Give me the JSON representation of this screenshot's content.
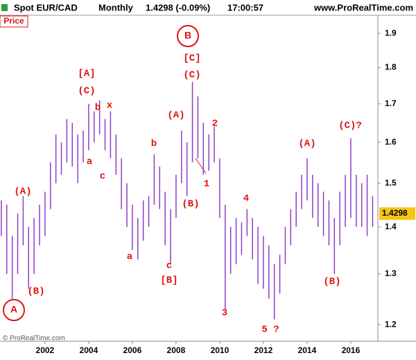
{
  "chart_data": {
    "type": "ohlc",
    "title": "Spot EUR/CAD",
    "interval": "Monthly",
    "quote": "1.4298 (-0.09%)",
    "time": "17:00:57",
    "site": "www.ProRealTime.com",
    "panel_label": "Price",
    "copyright": "© ProRealTime.com",
    "last_price": 1.4298,
    "color": "#8e3cc8",
    "log_scale": true,
    "xlim": [
      1999.94,
      2017.24
    ],
    "xticks": [
      2002,
      2004,
      2006,
      2008,
      2010,
      2012,
      2014,
      2016
    ],
    "ylim": [
      1.169,
      1.955
    ],
    "yticks": [
      1.2,
      1.3,
      1.4,
      1.5,
      1.6,
      1.7,
      1.8,
      1.9
    ],
    "bars": {
      "x": [
        2000.0,
        2000.25,
        2000.5,
        2000.75,
        2001.0,
        2001.25,
        2001.5,
        2001.75,
        2002.0,
        2002.25,
        2002.5,
        2002.75,
        2003.0,
        2003.25,
        2003.5,
        2003.75,
        2004.0,
        2004.25,
        2004.5,
        2004.75,
        2005.0,
        2005.25,
        2005.5,
        2005.75,
        2006.0,
        2006.25,
        2006.5,
        2006.75,
        2007.0,
        2007.25,
        2007.5,
        2007.75,
        2008.0,
        2008.25,
        2008.5,
        2008.75,
        2009.0,
        2009.25,
        2009.5,
        2009.75,
        2010.0,
        2010.25,
        2010.5,
        2010.75,
        2011.0,
        2011.25,
        2011.5,
        2011.75,
        2012.0,
        2012.25,
        2012.5,
        2012.75,
        2013.0,
        2013.25,
        2013.5,
        2013.75,
        2014.0,
        2014.25,
        2014.5,
        2014.75,
        2015.0,
        2015.25,
        2015.5,
        2015.75,
        2016.0,
        2016.25,
        2016.5,
        2016.75,
        2017.0
      ],
      "low": [
        1.38,
        1.3,
        1.25,
        1.3,
        1.36,
        1.27,
        1.3,
        1.36,
        1.38,
        1.44,
        1.5,
        1.52,
        1.55,
        1.54,
        1.5,
        1.55,
        1.58,
        1.6,
        1.62,
        1.58,
        1.56,
        1.52,
        1.44,
        1.4,
        1.35,
        1.33,
        1.37,
        1.4,
        1.45,
        1.44,
        1.36,
        1.32,
        1.42,
        1.5,
        1.47,
        1.55,
        1.56,
        1.52,
        1.53,
        1.55,
        1.42,
        1.23,
        1.3,
        1.32,
        1.34,
        1.38,
        1.33,
        1.28,
        1.27,
        1.25,
        1.21,
        1.26,
        1.32,
        1.36,
        1.4,
        1.44,
        1.46,
        1.42,
        1.4,
        1.38,
        1.36,
        1.3,
        1.36,
        1.4,
        1.42,
        1.4,
        1.4,
        1.38,
        1.4
      ],
      "high": [
        1.46,
        1.45,
        1.38,
        1.43,
        1.47,
        1.4,
        1.42,
        1.45,
        1.48,
        1.55,
        1.62,
        1.6,
        1.66,
        1.65,
        1.62,
        1.63,
        1.7,
        1.68,
        1.71,
        1.66,
        1.68,
        1.62,
        1.56,
        1.5,
        1.45,
        1.42,
        1.46,
        1.47,
        1.57,
        1.54,
        1.48,
        1.44,
        1.52,
        1.63,
        1.6,
        1.76,
        1.72,
        1.65,
        1.62,
        1.64,
        1.56,
        1.45,
        1.4,
        1.42,
        1.41,
        1.44,
        1.42,
        1.4,
        1.38,
        1.36,
        1.32,
        1.34,
        1.4,
        1.44,
        1.48,
        1.52,
        1.56,
        1.52,
        1.5,
        1.48,
        1.46,
        1.42,
        1.48,
        1.52,
        1.61,
        1.52,
        1.5,
        1.52,
        1.47
      ]
    },
    "annotations": [
      "A",
      "(A)",
      "(B)",
      "[A]",
      "(C)",
      "b",
      "x",
      "a",
      "c",
      "a",
      "b",
      "c",
      "[B]",
      "B",
      "[C]",
      "(C)",
      "(A)",
      "(B)",
      "1",
      "2",
      "3",
      "4",
      "5 ?",
      "(A)",
      "(B)",
      "(C)?"
    ]
  }
}
